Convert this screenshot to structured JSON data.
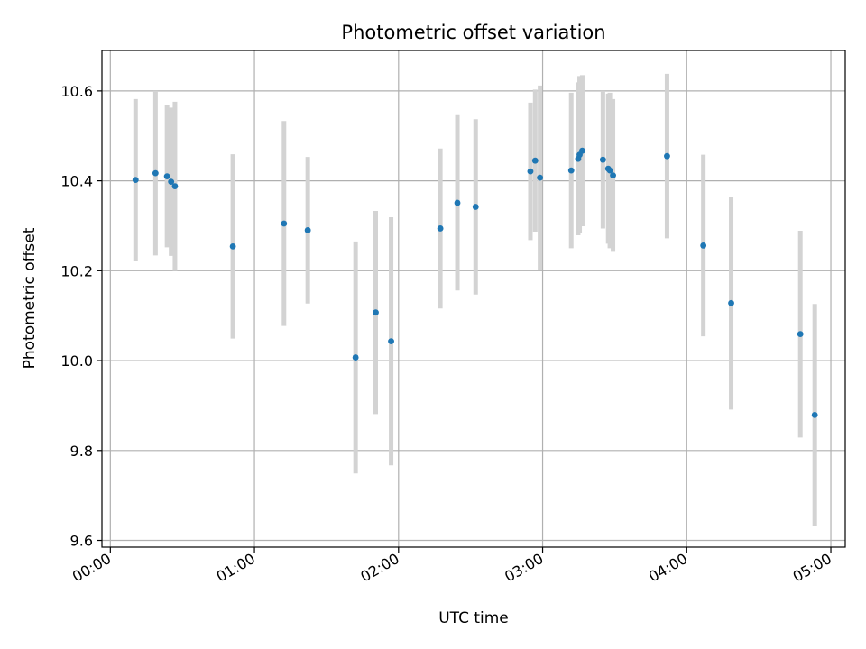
{
  "chart_data": {
    "type": "scatter",
    "title": "Photometric offset variation",
    "xlabel": "UTC time",
    "ylabel": "Photometric offset",
    "xlim_minutes": [
      -3.5,
      306
    ],
    "ylim": [
      9.585,
      10.69
    ],
    "x_ticks": [
      {
        "minutes": 0,
        "label": "00:00"
      },
      {
        "minutes": 60,
        "label": "01:00"
      },
      {
        "minutes": 120,
        "label": "02:00"
      },
      {
        "minutes": 180,
        "label": "03:00"
      },
      {
        "minutes": 240,
        "label": "04:00"
      },
      {
        "minutes": 300,
        "label": "05:00"
      }
    ],
    "y_ticks": [
      {
        "value": 9.6,
        "label": "9.6"
      },
      {
        "value": 9.8,
        "label": "9.8"
      },
      {
        "value": 10.0,
        "label": "10.0"
      },
      {
        "value": 10.2,
        "label": "10.2"
      },
      {
        "value": 10.4,
        "label": "10.4"
      },
      {
        "value": 10.6,
        "label": "10.6"
      }
    ],
    "grid": true,
    "colors": {
      "point": "#1f77b4",
      "errorbar": "#d3d3d3",
      "grid": "#b0b0b0",
      "axis": "#000000"
    },
    "points": [
      {
        "t": 10.5,
        "y": 10.402,
        "err": 0.18
      },
      {
        "t": 18.8,
        "y": 10.417,
        "err": 0.183
      },
      {
        "t": 23.6,
        "y": 10.41,
        "err": 0.158
      },
      {
        "t": 25.3,
        "y": 10.398,
        "err": 0.165
      },
      {
        "t": 26.9,
        "y": 10.388,
        "err": 0.188
      },
      {
        "t": 51.0,
        "y": 10.254,
        "err": 0.205
      },
      {
        "t": 72.3,
        "y": 10.305,
        "err": 0.228
      },
      {
        "t": 82.2,
        "y": 10.29,
        "err": 0.163
      },
      {
        "t": 102.1,
        "y": 10.007,
        "err": 0.258
      },
      {
        "t": 110.5,
        "y": 10.107,
        "err": 0.226
      },
      {
        "t": 116.9,
        "y": 10.043,
        "err": 0.276
      },
      {
        "t": 137.4,
        "y": 10.294,
        "err": 0.178
      },
      {
        "t": 144.5,
        "y": 10.351,
        "err": 0.195
      },
      {
        "t": 152.1,
        "y": 10.342,
        "err": 0.195
      },
      {
        "t": 174.9,
        "y": 10.421,
        "err": 0.153
      },
      {
        "t": 176.9,
        "y": 10.445,
        "err": 0.158
      },
      {
        "t": 178.9,
        "y": 10.407,
        "err": 0.205
      },
      {
        "t": 191.9,
        "y": 10.423,
        "err": 0.173
      },
      {
        "t": 194.8,
        "y": 10.449,
        "err": 0.17
      },
      {
        "t": 195.4,
        "y": 10.458,
        "err": 0.175
      },
      {
        "t": 196.5,
        "y": 10.467,
        "err": 0.168
      },
      {
        "t": 205.1,
        "y": 10.447,
        "err": 0.153
      },
      {
        "t": 207.3,
        "y": 10.427,
        "err": 0.167
      },
      {
        "t": 208.0,
        "y": 10.423,
        "err": 0.173
      },
      {
        "t": 209.3,
        "y": 10.412,
        "err": 0.17
      },
      {
        "t": 231.8,
        "y": 10.455,
        "err": 0.183
      },
      {
        "t": 246.9,
        "y": 10.256,
        "err": 0.202
      },
      {
        "t": 258.5,
        "y": 10.128,
        "err": 0.237
      },
      {
        "t": 287.3,
        "y": 10.059,
        "err": 0.23
      },
      {
        "t": 293.3,
        "y": 9.879,
        "err": 0.247
      }
    ]
  }
}
